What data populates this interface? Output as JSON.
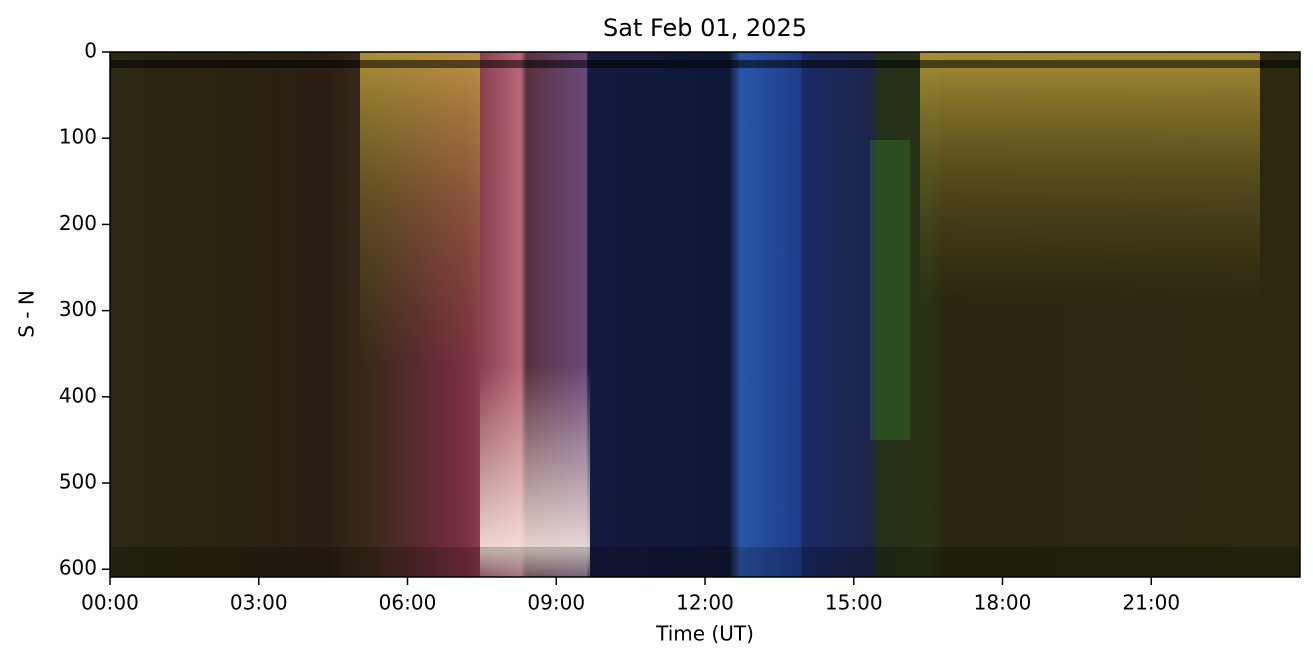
{
  "chart_data": {
    "type": "image",
    "title": "Sat Feb 01, 2025",
    "x_label": "Time (UT)",
    "y_label": "S - N",
    "xlim": [
      0,
      24
    ],
    "xticks": [
      {
        "value": 0,
        "label": "00:00"
      },
      {
        "value": 3,
        "label": "03:00"
      },
      {
        "value": 6,
        "label": "06:00"
      },
      {
        "value": 9,
        "label": "09:00"
      },
      {
        "value": 12,
        "label": "12:00"
      },
      {
        "value": 15,
        "label": "15:00"
      },
      {
        "value": 18,
        "label": "18:00"
      },
      {
        "value": 21,
        "label": "21:00"
      }
    ],
    "ylim": [
      609,
      0
    ],
    "yticks": [
      0,
      100,
      200,
      300,
      400,
      500,
      600
    ]
  }
}
